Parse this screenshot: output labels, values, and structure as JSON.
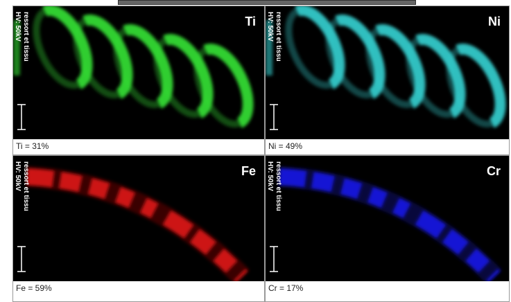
{
  "panels": [
    {
      "element": "Ti",
      "caption": "Ti = 31%",
      "voltage": "HV: 50kV",
      "sample": "ressort et tissu",
      "color": "#33dd33",
      "shape": "spiral"
    },
    {
      "element": "Ni",
      "caption": "Ni = 49%",
      "voltage": "HV: 50kV",
      "sample": "ressort et tissu",
      "color": "#33cccc",
      "shape": "spiral"
    },
    {
      "element": "Fe",
      "caption": "Fe = 59%",
      "voltage": "HV: 50kV",
      "sample": "ressort et tissu",
      "color": "#e81515",
      "shape": "band"
    },
    {
      "element": "Cr",
      "caption": "Cr = 17%",
      "voltage": "HV: 50kV",
      "sample": "ressort et tissu",
      "color": "#1a1aee",
      "shape": "band"
    }
  ]
}
